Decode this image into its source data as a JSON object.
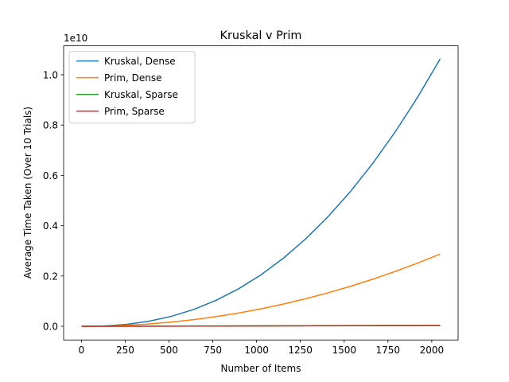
{
  "chart_data": {
    "type": "line",
    "title": "Kruskal v Prim",
    "x_label": "Number of Items",
    "y_label": "Average Time Taken (Over 10 Trials)",
    "y_offset_label": "1e10",
    "x": [
      1,
      128,
      256,
      384,
      512,
      640,
      768,
      896,
      1024,
      1152,
      1280,
      1408,
      1536,
      1664,
      1792,
      1920,
      2048
    ],
    "series": [
      {
        "name": "Kruskal, Dense",
        "color": "#1f77b4",
        "values": [
          0,
          0.0014,
          0.0075,
          0.0198,
          0.0393,
          0.0667,
          0.103,
          0.1485,
          0.2042,
          0.2702,
          0.3474,
          0.4358,
          0.536,
          0.6485,
          0.7737,
          0.9115,
          1.063
        ]
      },
      {
        "name": "Prim, Dense",
        "color": "#ff7f0e",
        "values": [
          0,
          0.001,
          0.004,
          0.0093,
          0.0168,
          0.0265,
          0.0384,
          0.0527,
          0.0693,
          0.0882,
          0.1095,
          0.1331,
          0.1591,
          0.1874,
          0.2183,
          0.2513,
          0.287
        ]
      },
      {
        "name": "Kruskal, Sparse",
        "color": "#2ca02c",
        "values": [
          0,
          0.0002,
          0.0004,
          0.0006,
          0.0008,
          0.0011,
          0.0013,
          0.0016,
          0.0018,
          0.0021,
          0.0024,
          0.0026,
          0.0029,
          0.0032,
          0.0035,
          0.0037,
          0.004
        ]
      },
      {
        "name": "Prim, Sparse",
        "color": "#d62728",
        "values": [
          0,
          0.0001,
          0.0003,
          0.0004,
          0.0006,
          0.0008,
          0.001,
          0.0012,
          0.0014,
          0.0016,
          0.0018,
          0.002,
          0.0022,
          0.0024,
          0.0026,
          0.0028,
          0.003
        ]
      }
    ],
    "xlim": [
      -101.35,
      2150.35
    ],
    "xticks": [
      0,
      250,
      500,
      750,
      1000,
      1250,
      1500,
      1750,
      2000
    ],
    "ylim": [
      -0.0544,
      1.115
    ],
    "yticks": [
      {
        "value": 0,
        "label": "0.0"
      },
      {
        "value": 0.2,
        "label": "0.2"
      },
      {
        "value": 0.4,
        "label": "0.4"
      },
      {
        "value": 0.6,
        "label": "0.6"
      },
      {
        "value": 0.8,
        "label": "0.8"
      },
      {
        "value": 1,
        "label": "1.0"
      }
    ],
    "legend": "upper left"
  }
}
